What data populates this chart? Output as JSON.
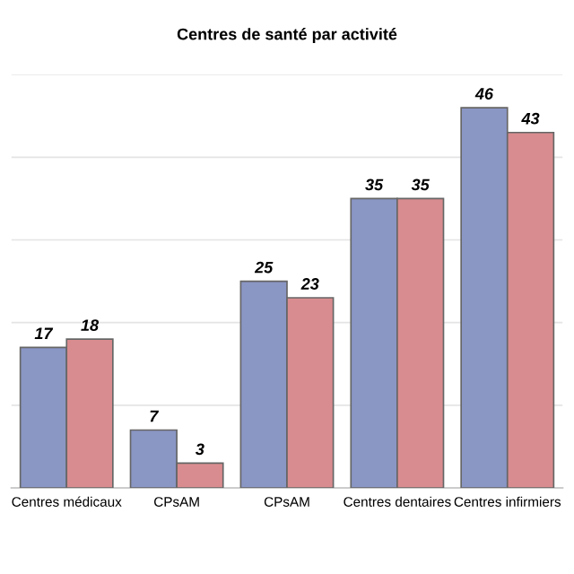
{
  "chart_data": {
    "type": "bar",
    "title": "Centres de santé par activité",
    "categories": [
      "Centres médicaux",
      "CPsAM",
      "CPsAM",
      "Centres dentaires",
      "Centres infirmiers"
    ],
    "series": [
      {
        "color": "#8a96c4",
        "values": [
          17,
          7,
          25,
          35,
          46
        ]
      },
      {
        "color": "#d98c8f",
        "values": [
          18,
          3,
          23,
          35,
          43
        ]
      }
    ],
    "ylim": [
      0,
      50
    ],
    "yticks": [
      {
        "value": 0,
        "label": null
      },
      {
        "value": 10,
        "label": null
      },
      {
        "value": 20,
        "label": null
      },
      {
        "value": 30,
        "label": null
      },
      {
        "value": 40,
        "label": null
      },
      {
        "value": 50,
        "label": null
      }
    ],
    "grid": "y",
    "tick_labels": "x",
    "data_labels": true,
    "legend": false
  }
}
